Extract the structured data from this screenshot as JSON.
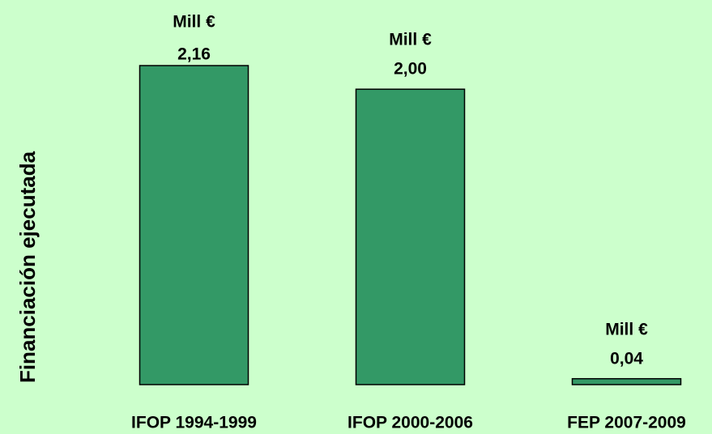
{
  "chart_data": {
    "type": "bar",
    "y_label": "Financiación ejecutada",
    "categories": [
      "IFOP 1994-1999",
      "IFOP 2000-2006",
      "FEP 2007-2009"
    ],
    "values": [
      2.16,
      2.0,
      0.04
    ],
    "value_labels": [
      "2,16",
      "2,00",
      "0,04"
    ],
    "value_unit": "Mill €",
    "color": "#339966",
    "background": "#ccffcc"
  }
}
